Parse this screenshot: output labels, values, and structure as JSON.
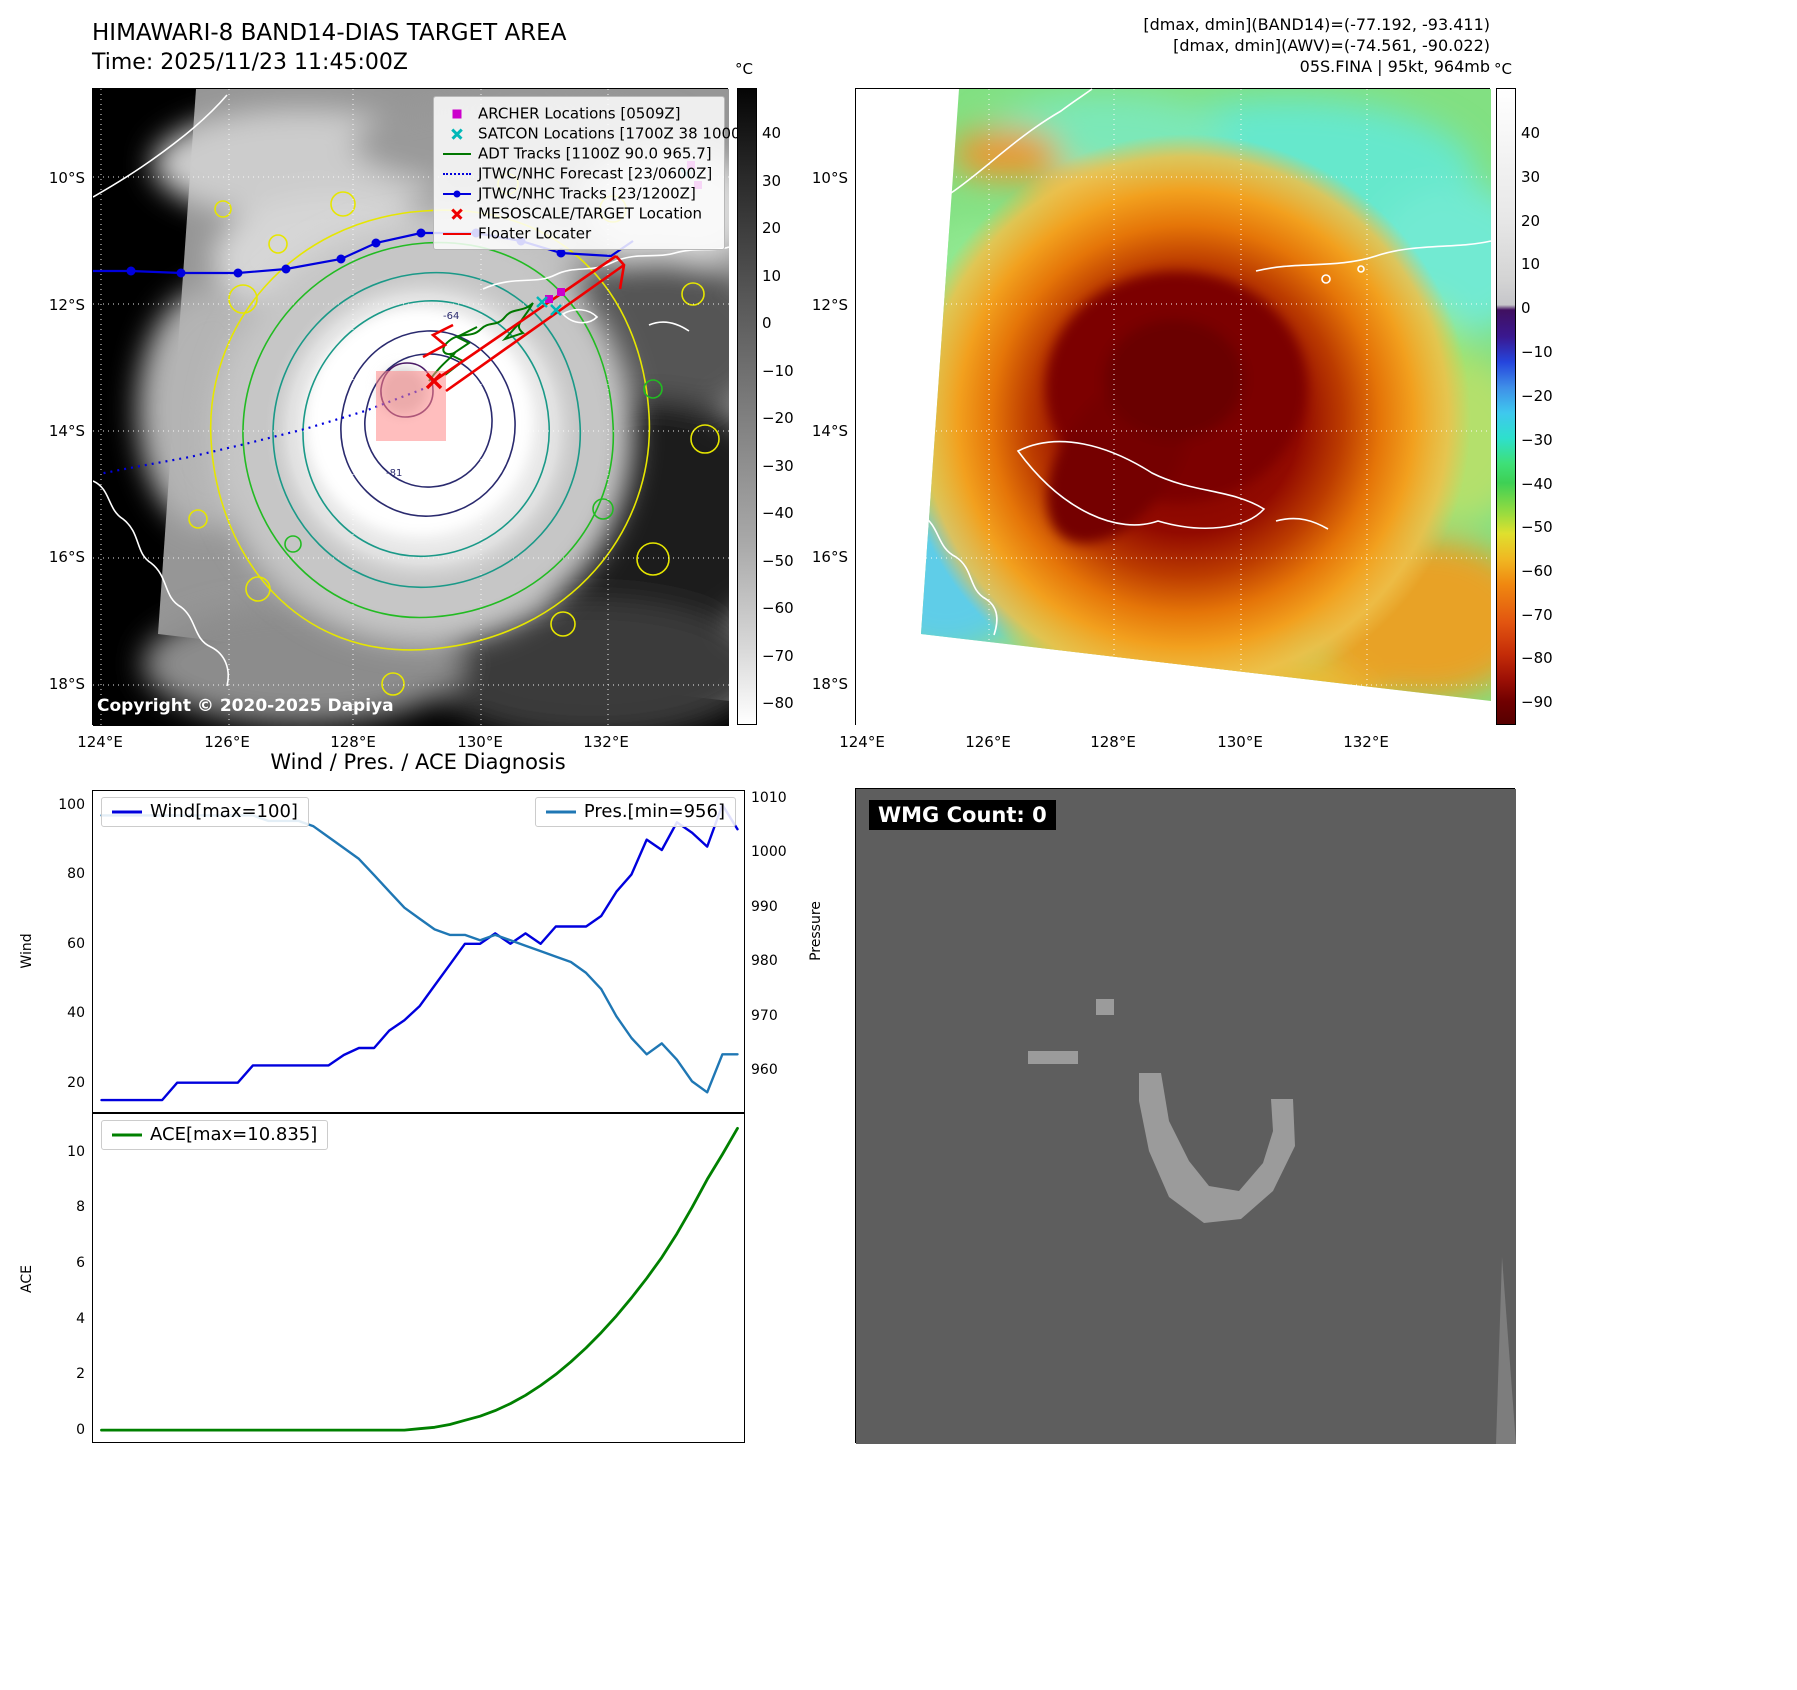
{
  "header": {
    "title": "HIMAWARI-8 BAND14-DIAS TARGET AREA",
    "time_line": "Time: 2025/11/23 11:45:00Z",
    "stats_line1": "[dmax, dmin](BAND14)=(-77.192, -93.411)",
    "stats_line2": "[dmax, dmin](AWV)=(-74.561, -90.022)",
    "stats_line3": "05S.FINA | 95kt, 964mb"
  },
  "band14": {
    "legend": [
      {
        "label": "ARCHER Locations [0509Z]",
        "color": "#cc00cc",
        "marker": "square"
      },
      {
        "label": "SATCON Locations [1700Z 38 1000]",
        "color": "#00b8b8",
        "marker": "x"
      },
      {
        "label": "ADT Tracks [1100Z 90.0 965.7]",
        "color": "#007700",
        "marker": "line"
      },
      {
        "label": "JTWC/NHC Forecast [23/0600Z]",
        "color": "#0000dd",
        "marker": "dotted-line"
      },
      {
        "label": "JTWC/NHC Tracks [23/1200Z]",
        "color": "#0000dd",
        "marker": "line-dot"
      },
      {
        "label": "MESOSCALE/TARGET Location",
        "color": "#ee0000",
        "marker": "x"
      },
      {
        "label": "Floater Locater",
        "color": "#ee0000",
        "marker": "line"
      }
    ],
    "lat_ticks": [
      "10°S",
      "12°S",
      "14°S",
      "16°S",
      "18°S"
    ],
    "lon_ticks": [
      "124°E",
      "126°E",
      "128°E",
      "130°E",
      "132°E"
    ],
    "colorbar_unit": "°C",
    "colorbar_ticks": [
      "40",
      "30",
      "20",
      "10",
      "0",
      "−10",
      "−20",
      "−30",
      "−40",
      "−50",
      "−60",
      "−70",
      "−80"
    ],
    "contour_labels": [
      "-64",
      "-81"
    ],
    "copyright": "Copyright © 2020-2025 Dapiya"
  },
  "awv": {
    "lat_ticks": [
      "10°S",
      "12°S",
      "14°S",
      "16°S",
      "18°S"
    ],
    "lon_ticks": [
      "124°E",
      "126°E",
      "128°E",
      "130°E",
      "132°E"
    ],
    "colorbar_unit": "°C",
    "colorbar_ticks": [
      "40",
      "30",
      "20",
      "10",
      "0",
      "−10",
      "−20",
      "−30",
      "−40",
      "−50",
      "−60",
      "−70",
      "−80",
      "−90"
    ]
  },
  "diagnosis": {
    "title": "Wind / Pres. / ACE Diagnosis",
    "wind_axis_label": "Wind",
    "pressure_axis_label": "Pressure",
    "ace_axis_label": "ACE",
    "wind_legend": "Wind[max=100]",
    "pres_legend": "Pres.[min=956]",
    "ace_legend": "ACE[max=10.835]",
    "wind_ticks": [
      "100",
      "80",
      "60",
      "40",
      "20"
    ],
    "pressure_ticks": [
      "1010",
      "1000",
      "990",
      "980",
      "970",
      "960"
    ],
    "ace_ticks": [
      "10",
      "8",
      "6",
      "4",
      "2",
      "0"
    ]
  },
  "wmg": {
    "label": "WMG Count: 0"
  },
  "chart_data": [
    {
      "type": "line",
      "title": "Wind / Pres. / ACE Diagnosis (wind and pressure panel)",
      "series": [
        {
          "name": "Wind[max=100]",
          "color": "#0000dd",
          "axis": "left",
          "values": [
            15,
            15,
            15,
            15,
            15,
            20,
            20,
            20,
            20,
            20,
            25,
            25,
            25,
            25,
            25,
            25,
            28,
            30,
            30,
            35,
            38,
            42,
            48,
            54,
            60,
            60,
            63,
            60,
            63,
            60,
            65,
            65,
            65,
            68,
            75,
            80,
            90,
            87,
            95,
            92,
            88,
            100,
            93
          ]
        },
        {
          "name": "Pres.[min=956]",
          "color": "#1f77b4",
          "axis": "right",
          "values": [
            1007,
            1007,
            1007,
            1007,
            1007,
            1007,
            1007,
            1007,
            1007,
            1007,
            1007,
            1006,
            1006,
            1006,
            1005,
            1003,
            1001,
            999,
            996,
            993,
            990,
            988,
            986,
            985,
            985,
            984,
            985,
            984,
            983,
            982,
            981,
            980,
            978,
            975,
            970,
            966,
            963,
            965,
            962,
            958,
            956,
            963,
            963
          ]
        }
      ],
      "left_axis": {
        "label": "Wind",
        "range": [
          11,
          104
        ],
        "ticks": [
          20,
          40,
          60,
          80,
          100
        ]
      },
      "right_axis": {
        "label": "Pressure",
        "range": [
          952,
          1011.5
        ],
        "ticks": [
          960,
          970,
          980,
          990,
          1000,
          1010
        ]
      },
      "legend_position": "upper left / upper right",
      "grid": false
    },
    {
      "type": "line",
      "title": "ACE panel",
      "series": [
        {
          "name": "ACE[max=10.835]",
          "color": "#008000",
          "values": [
            0,
            0,
            0,
            0,
            0,
            0,
            0,
            0,
            0,
            0,
            0,
            0,
            0,
            0,
            0,
            0,
            0,
            0,
            0,
            0,
            0,
            0.05,
            0.1,
            0.2,
            0.35,
            0.5,
            0.7,
            0.95,
            1.25,
            1.6,
            2.0,
            2.45,
            2.95,
            3.5,
            4.1,
            4.75,
            5.45,
            6.2,
            7.05,
            8.0,
            9.0,
            9.9,
            10.835
          ]
        }
      ],
      "left_axis": {
        "label": "ACE",
        "range": [
          -0.5,
          11.35
        ],
        "ticks": [
          0,
          2,
          4,
          6,
          8,
          10
        ]
      },
      "legend_position": "upper left",
      "grid": false
    }
  ]
}
